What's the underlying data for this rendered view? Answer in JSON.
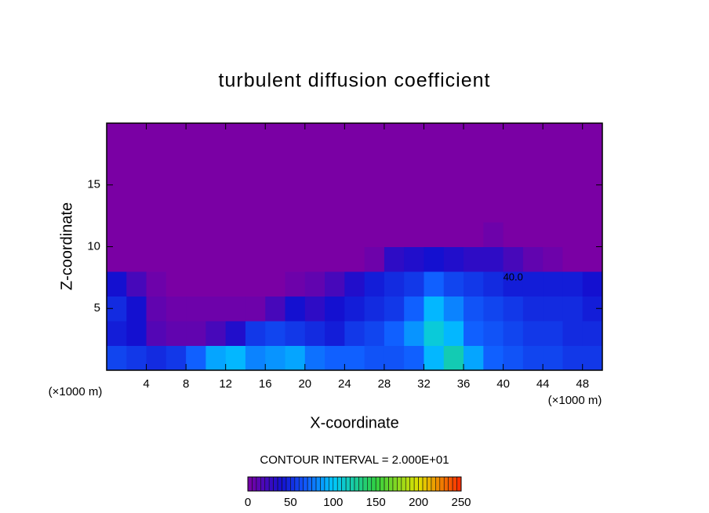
{
  "chart_data": {
    "type": "heatmap",
    "title": "turbulent diffusion coefficient",
    "x_label": "X-coordinate",
    "y_label": "Z-coordinate",
    "x_unit": "(×1000 m)",
    "y_unit": "(×1000 m)",
    "xlim": [
      0,
      50
    ],
    "ylim": [
      0,
      20
    ],
    "xticks": [
      4,
      8,
      12,
      16,
      20,
      24,
      28,
      32,
      36,
      40,
      44,
      48
    ],
    "yticks": [
      5,
      10,
      15
    ],
    "x": [
      1,
      3,
      5,
      7,
      9,
      11,
      13,
      15,
      17,
      19,
      21,
      23,
      25,
      27,
      29,
      31,
      33,
      35,
      37,
      39,
      41,
      43,
      45,
      47,
      49
    ],
    "y": [
      1,
      3,
      5,
      7,
      9,
      11,
      13,
      15,
      17,
      19
    ],
    "z": [
      [
        60,
        55,
        50,
        55,
        70,
        90,
        95,
        80,
        85,
        90,
        75,
        70,
        70,
        65,
        65,
        70,
        95,
        120,
        90,
        70,
        65,
        60,
        60,
        55,
        55
      ],
      [
        45,
        40,
        15,
        10,
        10,
        20,
        35,
        55,
        60,
        55,
        50,
        45,
        55,
        60,
        70,
        85,
        110,
        95,
        70,
        65,
        60,
        55,
        55,
        50,
        50
      ],
      [
        50,
        40,
        10,
        5,
        5,
        5,
        5,
        5,
        20,
        40,
        30,
        40,
        45,
        50,
        55,
        70,
        95,
        80,
        65,
        60,
        55,
        50,
        50,
        50,
        45
      ],
      [
        40,
        20,
        5,
        0,
        0,
        0,
        0,
        0,
        0,
        5,
        10,
        20,
        35,
        45,
        50,
        55,
        70,
        60,
        55,
        50,
        45,
        45,
        45,
        45,
        40
      ],
      [
        0,
        0,
        0,
        0,
        0,
        0,
        0,
        0,
        0,
        0,
        0,
        0,
        0,
        5,
        30,
        35,
        40,
        35,
        30,
        30,
        20,
        10,
        5,
        0,
        0
      ],
      [
        0,
        0,
        0,
        0,
        0,
        0,
        0,
        0,
        0,
        0,
        0,
        0,
        0,
        0,
        0,
        0,
        0,
        0,
        0,
        5,
        0,
        0,
        0,
        0,
        0
      ],
      [
        0,
        0,
        0,
        0,
        0,
        0,
        0,
        0,
        0,
        0,
        0,
        0,
        0,
        0,
        0,
        0,
        0,
        0,
        0,
        0,
        0,
        0,
        0,
        0,
        0
      ],
      [
        0,
        0,
        0,
        0,
        0,
        0,
        0,
        0,
        0,
        0,
        0,
        0,
        0,
        0,
        0,
        0,
        0,
        0,
        0,
        0,
        0,
        0,
        0,
        0,
        0
      ],
      [
        0,
        0,
        0,
        0,
        0,
        0,
        0,
        0,
        0,
        0,
        0,
        0,
        0,
        0,
        0,
        0,
        0,
        0,
        0,
        0,
        0,
        0,
        0,
        0,
        0
      ],
      [
        0,
        0,
        0,
        0,
        0,
        0,
        0,
        0,
        0,
        0,
        0,
        0,
        0,
        0,
        0,
        0,
        0,
        0,
        0,
        0,
        0,
        0,
        0,
        0,
        0
      ]
    ],
    "colorscale": [
      [
        0,
        "#7a00a4"
      ],
      [
        40,
        "#1410d0"
      ],
      [
        70,
        "#1060ff"
      ],
      [
        100,
        "#00c8ff"
      ],
      [
        150,
        "#30d040"
      ],
      [
        200,
        "#e0e000"
      ],
      [
        250,
        "#ff2800"
      ]
    ],
    "contour_labels": [
      {
        "text": "40.0",
        "x": 41,
        "y": 7.5
      }
    ],
    "contour_interval_text": "CONTOUR INTERVAL = 2.000E+01",
    "colorbar_lim": [
      0,
      250
    ],
    "colorbar_ticks": [
      0,
      50,
      100,
      150,
      200,
      250
    ]
  }
}
